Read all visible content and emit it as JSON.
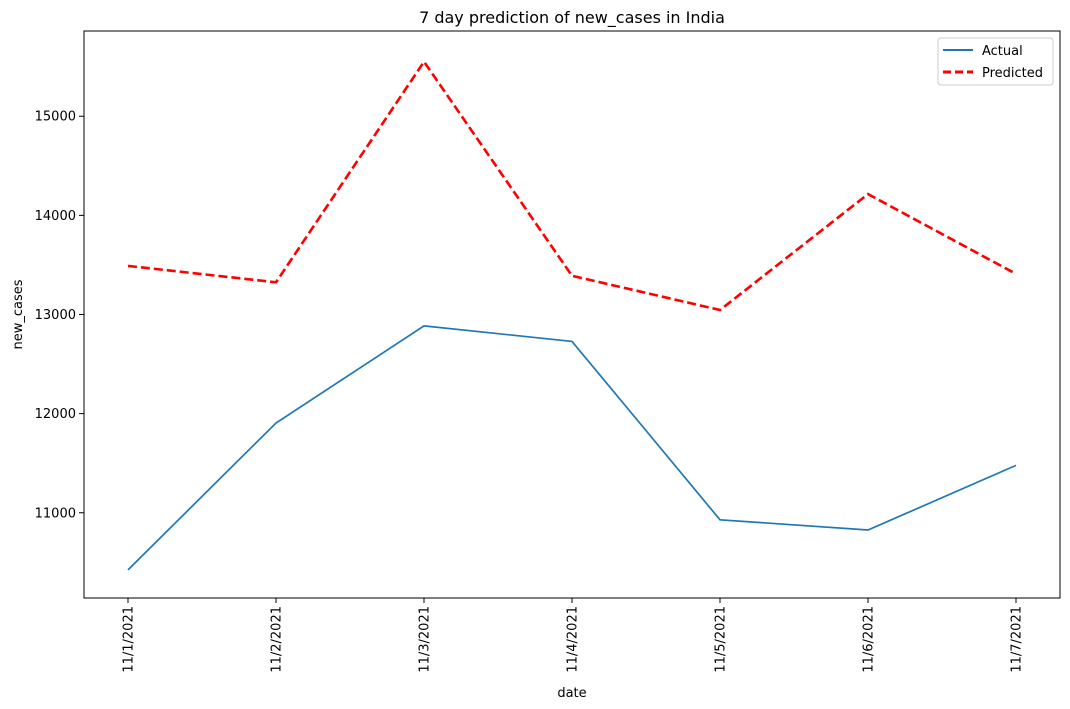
{
  "chart_data": {
    "type": "line",
    "title": "7 day prediction of new_cases in India",
    "xlabel": "date",
    "ylabel": "new_cases",
    "categories": [
      "11/1/2021",
      "11/2/2021",
      "11/3/2021",
      "11/4/2021",
      "11/5/2021",
      "11/6/2021",
      "11/7/2021"
    ],
    "ylim": [
      10140,
      15860
    ],
    "yticks": [
      11000,
      12000,
      13000,
      14000,
      15000
    ],
    "grid": false,
    "legend_position": "top-right",
    "series": [
      {
        "name": "Actual",
        "color": "#1f77b4",
        "dash": "solid",
        "values": [
          10423,
          11905,
          12885,
          12729,
          10929,
          10826,
          11478
        ]
      },
      {
        "name": "Predicted",
        "color": "#ff0000",
        "dash": "dashed",
        "values": [
          13490,
          13325,
          15550,
          13390,
          13045,
          14215,
          13410
        ]
      }
    ]
  }
}
